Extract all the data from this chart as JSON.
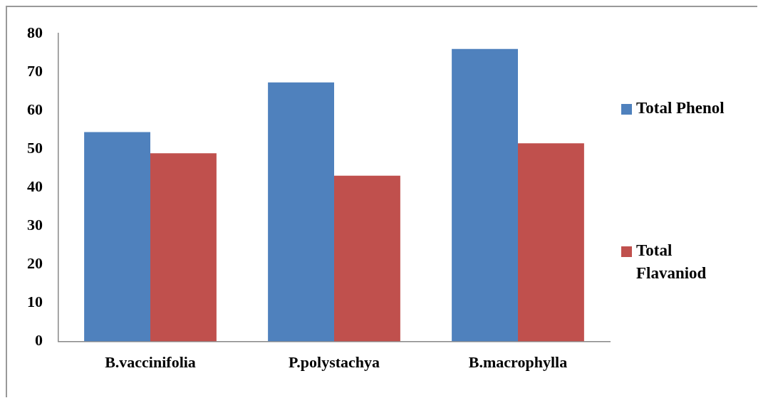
{
  "chart_data": {
    "type": "bar",
    "categories": [
      "B.vaccinifolia",
      "P.polystachya",
      "B.macrophylla"
    ],
    "series": [
      {
        "name": "Total Phenol",
        "color": "#4f81bd",
        "values": [
          54.4,
          67.3,
          76.0
        ]
      },
      {
        "name": "Total Flavaniod",
        "color": "#c0504d",
        "values": [
          48.9,
          43.1,
          51.5
        ]
      }
    ],
    "ylim": [
      0,
      80
    ],
    "yticks": [
      0,
      10,
      20,
      30,
      40,
      50,
      60,
      70,
      80
    ],
    "grid": false,
    "legend": "right"
  }
}
